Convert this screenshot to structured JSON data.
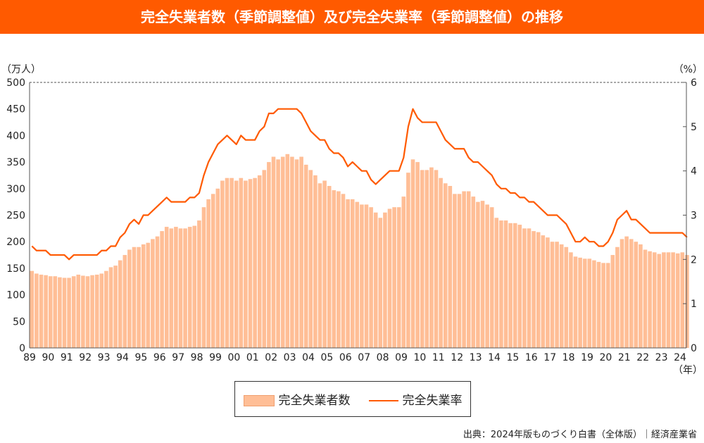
{
  "title": "完全失業者数（季節調整値）及び完全失業率（季節調整値）の推移",
  "source": "出典：2024年版ものづくり白書（全体版）｜経済産業省",
  "chart_data": {
    "type": "bar+line",
    "left_unit": "（万人）",
    "right_unit": "（%）",
    "x_unit": "（年）",
    "ylim_left": [
      0,
      500
    ],
    "ylim_right": [
      0,
      6
    ],
    "left_ticks": [
      "0",
      "50",
      "100",
      "150",
      "200",
      "250",
      "300",
      "350",
      "400",
      "450",
      "500"
    ],
    "right_ticks": [
      "0",
      "1",
      "2",
      "3",
      "4",
      "5",
      "6"
    ],
    "x_ticks": [
      "89",
      "90",
      "91",
      "92",
      "93",
      "94",
      "95",
      "96",
      "97",
      "98",
      "99",
      "00",
      "01",
      "02",
      "03",
      "04",
      "05",
      "06",
      "07",
      "08",
      "09",
      "10",
      "11",
      "12",
      "13",
      "14",
      "15",
      "16",
      "17",
      "18",
      "19",
      "20",
      "21",
      "22",
      "23",
      "24"
    ],
    "start_year": 1989,
    "frequency": "quarterly",
    "colors": {
      "bar": "#FFBE96",
      "line": "#FF5A00"
    },
    "series": [
      {
        "name": "完全失業者数",
        "axis": "left",
        "type": "bar",
        "values": [
          145,
          140,
          138,
          137,
          135,
          135,
          133,
          132,
          132,
          135,
          138,
          136,
          135,
          137,
          138,
          140,
          145,
          152,
          155,
          165,
          175,
          185,
          190,
          190,
          195,
          198,
          205,
          210,
          220,
          228,
          225,
          228,
          225,
          225,
          228,
          230,
          240,
          265,
          280,
          290,
          300,
          315,
          320,
          320,
          315,
          320,
          315,
          318,
          320,
          325,
          335,
          350,
          360,
          355,
          360,
          365,
          360,
          355,
          360,
          345,
          335,
          325,
          310,
          315,
          305,
          297,
          295,
          290,
          280,
          280,
          275,
          270,
          270,
          265,
          255,
          245,
          255,
          262,
          265,
          265,
          285,
          330,
          355,
          350,
          335,
          335,
          340,
          335,
          320,
          310,
          305,
          290,
          290,
          295,
          295,
          285,
          275,
          277,
          270,
          265,
          245,
          240,
          240,
          235,
          235,
          232,
          225,
          225,
          220,
          218,
          212,
          208,
          200,
          200,
          195,
          190,
          180,
          172,
          170,
          168,
          168,
          165,
          162,
          160,
          160,
          175,
          190,
          205,
          210,
          205,
          200,
          195,
          185,
          182,
          180,
          177,
          180,
          180,
          180,
          178,
          180,
          175
        ]
      },
      {
        "name": "完全失業率",
        "axis": "right",
        "type": "line",
        "values": [
          2.3,
          2.2,
          2.2,
          2.2,
          2.1,
          2.1,
          2.1,
          2.1,
          2.0,
          2.1,
          2.1,
          2.1,
          2.1,
          2.1,
          2.1,
          2.2,
          2.2,
          2.3,
          2.3,
          2.5,
          2.6,
          2.8,
          2.9,
          2.8,
          3.0,
          3.0,
          3.1,
          3.2,
          3.3,
          3.4,
          3.3,
          3.3,
          3.3,
          3.3,
          3.4,
          3.4,
          3.5,
          3.9,
          4.2,
          4.4,
          4.6,
          4.7,
          4.8,
          4.7,
          4.6,
          4.8,
          4.7,
          4.7,
          4.7,
          4.9,
          5.0,
          5.3,
          5.3,
          5.4,
          5.4,
          5.4,
          5.4,
          5.4,
          5.3,
          5.1,
          4.9,
          4.8,
          4.7,
          4.7,
          4.5,
          4.4,
          4.4,
          4.3,
          4.1,
          4.2,
          4.1,
          4.0,
          4.0,
          3.8,
          3.7,
          3.8,
          3.9,
          4.0,
          4.0,
          4.0,
          4.3,
          5.0,
          5.4,
          5.2,
          5.1,
          5.1,
          5.1,
          5.1,
          4.9,
          4.7,
          4.6,
          4.5,
          4.5,
          4.5,
          4.3,
          4.2,
          4.2,
          4.1,
          4.0,
          3.9,
          3.7,
          3.6,
          3.6,
          3.5,
          3.5,
          3.4,
          3.4,
          3.3,
          3.3,
          3.2,
          3.1,
          3.0,
          3.0,
          3.0,
          2.9,
          2.8,
          2.6,
          2.4,
          2.4,
          2.5,
          2.4,
          2.4,
          2.3,
          2.3,
          2.4,
          2.6,
          2.9,
          3.0,
          3.1,
          2.9,
          2.9,
          2.8,
          2.7,
          2.6,
          2.6,
          2.6,
          2.6,
          2.6,
          2.6,
          2.6,
          2.6,
          2.5
        ]
      }
    ]
  }
}
